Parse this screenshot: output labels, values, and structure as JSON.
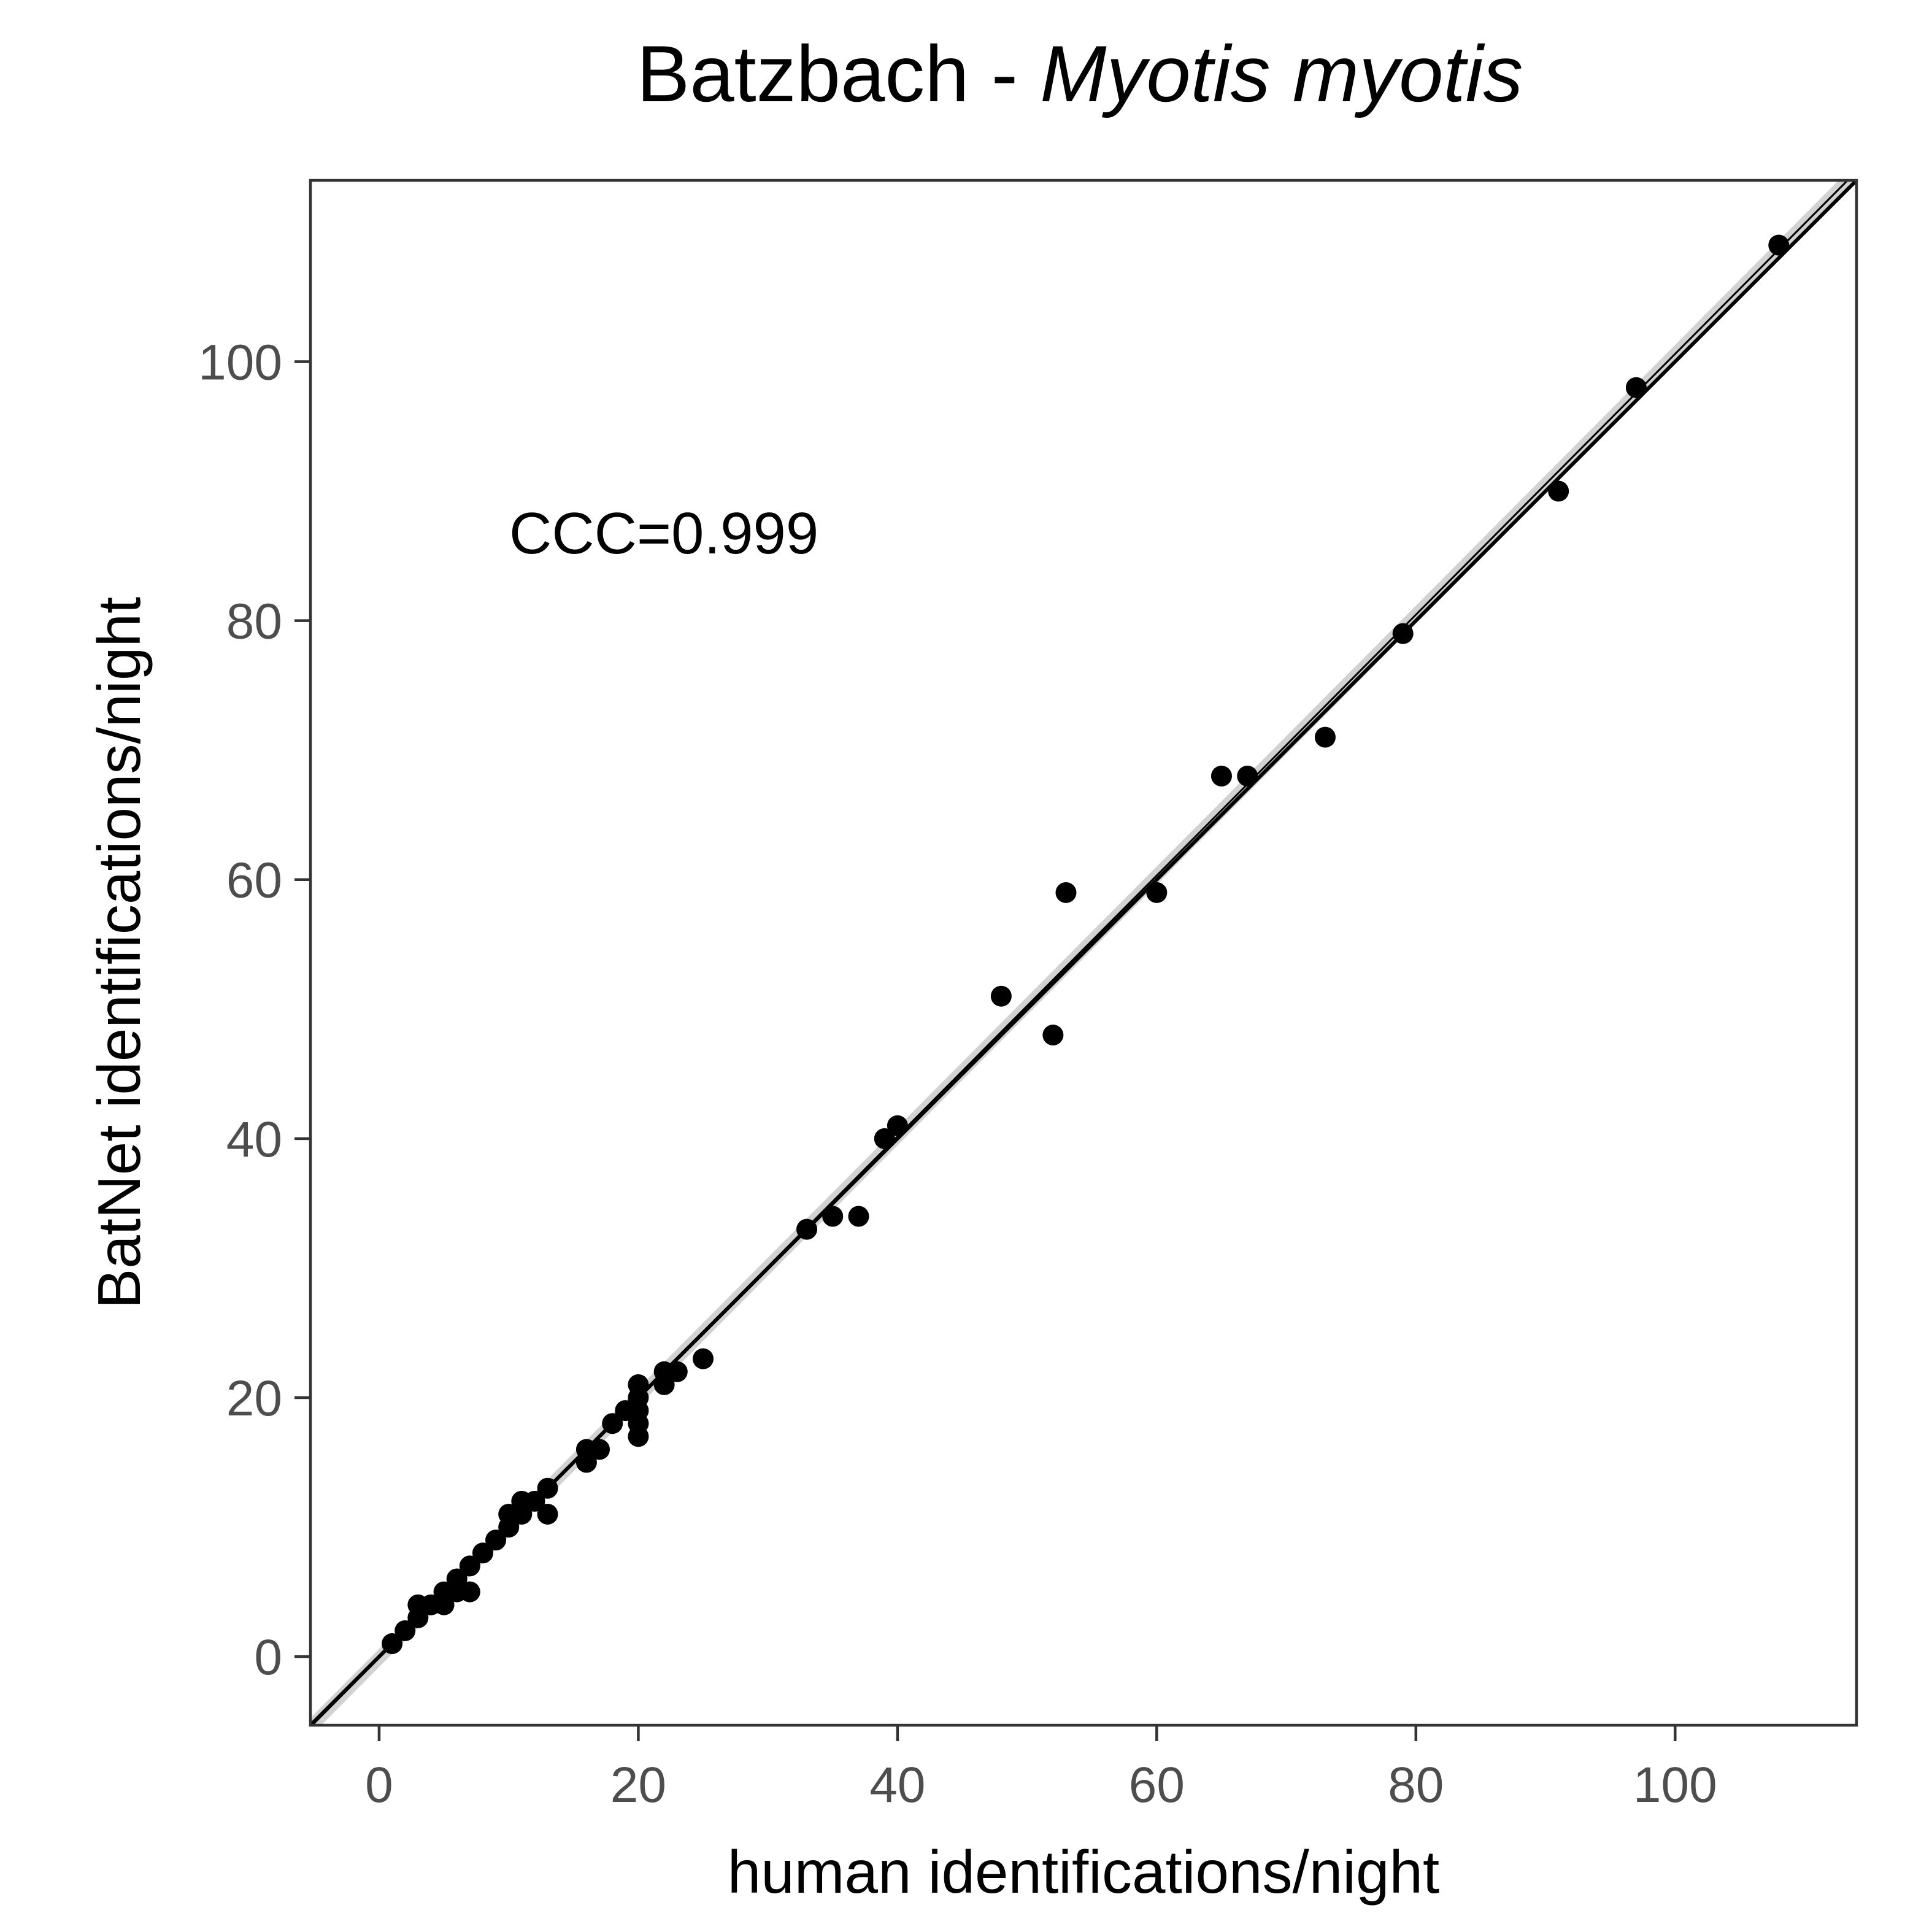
{
  "chart_data": {
    "type": "scatter",
    "title": "Batzbach - ",
    "title_italic": "Myotis myotis",
    "xlabel": "human identifications/night",
    "ylabel": "BatNet identifications/night",
    "annotation": "CCC=0.999",
    "xlim": [
      -5.3,
      114
    ],
    "ylim": [
      -5.3,
      114
    ],
    "x_ticks": [
      0,
      20,
      40,
      60,
      80,
      100
    ],
    "y_ticks": [
      0,
      20,
      40,
      60,
      80,
      100
    ],
    "grid": false,
    "identity_line": {
      "intercept": 0,
      "slope": 1
    },
    "fit_line": {
      "intercept": -0.1,
      "slope": 1.007
    },
    "point_color": "#000000",
    "fit_band_color": "#bfbfbf",
    "points": [
      [
        1,
        1
      ],
      [
        2,
        2
      ],
      [
        3,
        3
      ],
      [
        3,
        4
      ],
      [
        4,
        4
      ],
      [
        5,
        4
      ],
      [
        5,
        5
      ],
      [
        6,
        5
      ],
      [
        6,
        6
      ],
      [
        7,
        5
      ],
      [
        7,
        7
      ],
      [
        8,
        8
      ],
      [
        9,
        9
      ],
      [
        10,
        10
      ],
      [
        10,
        11
      ],
      [
        11,
        11
      ],
      [
        11,
        12
      ],
      [
        12,
        12
      ],
      [
        13,
        11
      ],
      [
        13,
        13
      ],
      [
        16,
        15
      ],
      [
        16,
        16
      ],
      [
        17,
        16
      ],
      [
        18,
        18
      ],
      [
        19,
        19
      ],
      [
        20,
        17
      ],
      [
        20,
        18
      ],
      [
        20,
        19
      ],
      [
        20,
        20
      ],
      [
        20,
        21
      ],
      [
        22,
        21
      ],
      [
        22,
        22
      ],
      [
        23,
        22
      ],
      [
        25,
        23
      ],
      [
        33,
        33
      ],
      [
        35,
        34
      ],
      [
        37,
        34
      ],
      [
        39,
        40
      ],
      [
        40,
        41
      ],
      [
        48,
        51
      ],
      [
        52,
        48
      ],
      [
        53,
        59
      ],
      [
        60,
        59
      ],
      [
        65,
        68
      ],
      [
        67,
        68
      ],
      [
        73,
        71
      ],
      [
        79,
        79
      ],
      [
        91,
        90
      ],
      [
        97,
        98
      ],
      [
        108,
        109
      ]
    ]
  }
}
